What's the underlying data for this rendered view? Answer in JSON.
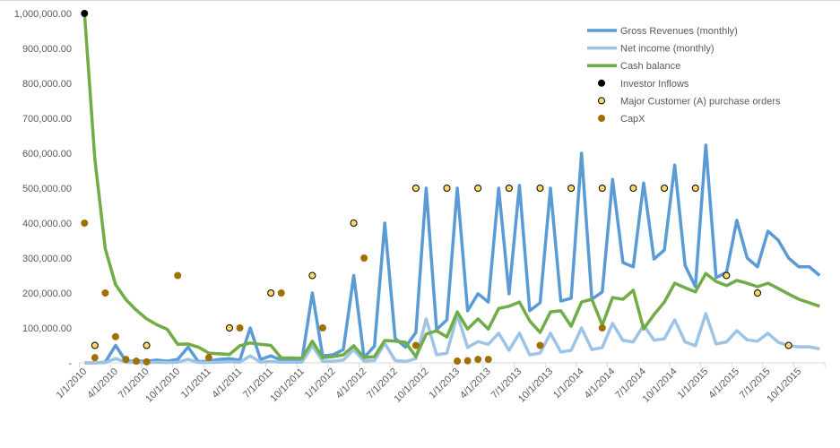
{
  "chart_data": {
    "type": "line",
    "title": "",
    "xlabel": "",
    "ylabel": "",
    "ylim": [
      0,
      1000000
    ],
    "grid": false,
    "legend_placement": "top-right",
    "y_tick_labels": [
      "-",
      "100,000.00",
      "200,000.00",
      "300,000.00",
      "400,000.00",
      "500,000.00",
      "600,000.00",
      "700,000.00",
      "800,000.00",
      "900,000.00",
      "1,000,000.00"
    ],
    "y_ticks": [
      0,
      100000,
      200000,
      300000,
      400000,
      500000,
      600000,
      700000,
      800000,
      900000,
      1000000
    ],
    "x": [
      "1/1/2010",
      "2/1/2010",
      "3/1/2010",
      "4/1/2010",
      "5/1/2010",
      "6/1/2010",
      "7/1/2010",
      "8/1/2010",
      "9/1/2010",
      "10/1/2010",
      "11/1/2010",
      "12/1/2010",
      "1/1/2011",
      "2/1/2011",
      "3/1/2011",
      "4/1/2011",
      "5/1/2011",
      "6/1/2011",
      "7/1/2011",
      "8/1/2011",
      "9/1/2011",
      "10/1/2011",
      "11/1/2011",
      "12/1/2011",
      "1/1/2012",
      "2/1/2012",
      "3/1/2012",
      "4/1/2012",
      "5/1/2012",
      "6/1/2012",
      "7/1/2012",
      "8/1/2012",
      "9/1/2012",
      "10/1/2012",
      "11/1/2012",
      "12/1/2012",
      "1/1/2013",
      "2/1/2013",
      "3/1/2013",
      "4/1/2013",
      "5/1/2013",
      "6/1/2013",
      "7/1/2013",
      "8/1/2013",
      "9/1/2013",
      "10/1/2013",
      "11/1/2013",
      "12/1/2013",
      "1/1/2014",
      "2/1/2014",
      "3/1/2014",
      "4/1/2014",
      "5/1/2014",
      "6/1/2014",
      "7/1/2014",
      "8/1/2014",
      "9/1/2014",
      "10/1/2014",
      "11/1/2014",
      "12/1/2014",
      "1/1/2015",
      "2/1/2015",
      "3/1/2015",
      "4/1/2015",
      "5/1/2015",
      "6/1/2015",
      "7/1/2015",
      "8/1/2015",
      "9/1/2015",
      "10/1/2015",
      "11/1/2015",
      "12/1/2015"
    ],
    "x_tick_labels": [
      "1/1/2010",
      "4/1/2010",
      "7/1/2010",
      "10/1/2010",
      "1/1/2011",
      "4/1/2011",
      "7/1/2011",
      "10/1/2011",
      "1/1/2012",
      "4/1/2012",
      "7/1/2012",
      "10/1/2012",
      "1/1/2013",
      "4/1/2013",
      "7/1/2013",
      "10/1/2013",
      "1/1/2014",
      "4/1/2014",
      "7/1/2014",
      "10/1/2014",
      "1/1/2015",
      "4/1/2015",
      "7/1/2015",
      "10/1/2015"
    ],
    "series": [
      {
        "name": "Gross Revenues (monthly)",
        "kind": "line",
        "color": "#5B9BD5",
        "values": [
          0,
          0,
          2000,
          50000,
          5000,
          5000,
          5000,
          8000,
          5000,
          10000,
          45000,
          3000,
          5000,
          10000,
          12000,
          8000,
          100000,
          10000,
          20000,
          8000,
          10000,
          8000,
          200000,
          20000,
          23000,
          38000,
          250000,
          15000,
          48000,
          400000,
          70000,
          45000,
          87000,
          500000,
          95000,
          123000,
          500000,
          149000,
          198000,
          174000,
          500000,
          198000,
          508000,
          149000,
          172000,
          500000,
          177000,
          185000,
          600000,
          182000,
          203000,
          525000,
          287000,
          275000,
          515000,
          297000,
          323000,
          566000,
          279000,
          218000,
          623000,
          244000,
          259000,
          408000,
          300000,
          275000,
          377000,
          351000,
          300000,
          275000,
          275000,
          250000
        ]
      },
      {
        "name": "Net income (monthly)",
        "kind": "line",
        "color": "#9DC3E6",
        "values": [
          0,
          0,
          1000,
          12000,
          2000,
          1000,
          1000,
          2000,
          1000,
          2000,
          10000,
          1000,
          1000,
          2000,
          3000,
          2000,
          20000,
          2000,
          4000,
          2000,
          2000,
          2000,
          49000,
          5000,
          5000,
          8000,
          38000,
          5000,
          7000,
          56000,
          7000,
          4000,
          12000,
          126000,
          23000,
          28000,
          138000,
          44000,
          61000,
          53000,
          85000,
          36000,
          85000,
          23000,
          28000,
          85000,
          31000,
          36000,
          100000,
          38000,
          44000,
          113000,
          64000,
          60000,
          108000,
          65000,
          69000,
          123000,
          60000,
          49000,
          141000,
          54000,
          60000,
          92000,
          66000,
          62000,
          85000,
          59000,
          49000,
          46000,
          46000,
          40000
        ]
      },
      {
        "name": "Cash balance",
        "kind": "line",
        "color": "#70AD47",
        "values": [
          1000000,
          583000,
          327000,
          224000,
          181000,
          151000,
          126000,
          109000,
          96000,
          53000,
          54000,
          45000,
          28000,
          26000,
          24000,
          49000,
          57000,
          53000,
          50000,
          14000,
          14000,
          13000,
          62000,
          15000,
          18000,
          23000,
          49000,
          15000,
          18000,
          64000,
          62000,
          59000,
          18000,
          82000,
          92000,
          74000,
          146000,
          97000,
          126000,
          97000,
          156000,
          162000,
          174000,
          120000,
          87000,
          146000,
          149000,
          105000,
          174000,
          182000,
          108000,
          187000,
          182000,
          208000,
          97000,
          138000,
          174000,
          228000,
          215000,
          203000,
          256000,
          233000,
          221000,
          236000,
          228000,
          218000,
          228000,
          213000,
          197000,
          182000,
          172000,
          162000
        ]
      },
      {
        "name": "Investor Inflows",
        "kind": "scatter",
        "color": "#000000",
        "stroke": "#000000",
        "points": [
          {
            "x": "1/1/2010",
            "y": 1000000
          }
        ]
      },
      {
        "name": "Major Customer (A) purchase orders",
        "kind": "scatter",
        "color": "#FFD966",
        "stroke": "#000000",
        "points": [
          {
            "x": "2/1/2010",
            "y": 50000
          },
          {
            "x": "7/1/2010",
            "y": 50000
          },
          {
            "x": "3/1/2011",
            "y": 100000
          },
          {
            "x": "7/1/2011",
            "y": 200000
          },
          {
            "x": "11/1/2011",
            "y": 250000
          },
          {
            "x": "3/1/2012",
            "y": 400000
          },
          {
            "x": "9/1/2012",
            "y": 500000
          },
          {
            "x": "12/1/2012",
            "y": 500000
          },
          {
            "x": "3/1/2013",
            "y": 500000
          },
          {
            "x": "6/1/2013",
            "y": 500000
          },
          {
            "x": "9/1/2013",
            "y": 500000
          },
          {
            "x": "12/1/2013",
            "y": 500000
          },
          {
            "x": "3/1/2014",
            "y": 500000
          },
          {
            "x": "6/1/2014",
            "y": 500000
          },
          {
            "x": "9/1/2014",
            "y": 500000
          },
          {
            "x": "12/1/2014",
            "y": 500000
          },
          {
            "x": "3/1/2015",
            "y": 250000
          },
          {
            "x": "6/1/2015",
            "y": 200000
          },
          {
            "x": "9/1/2015",
            "y": 50000
          }
        ]
      },
      {
        "name": "CapX",
        "kind": "scatter",
        "color": "#A07000",
        "stroke": "#A07000",
        "points": [
          {
            "x": "1/1/2010",
            "y": 400000
          },
          {
            "x": "2/1/2010",
            "y": 15000
          },
          {
            "x": "3/1/2010",
            "y": 200000
          },
          {
            "x": "4/1/2010",
            "y": 75000
          },
          {
            "x": "5/1/2010",
            "y": 10000
          },
          {
            "x": "6/1/2010",
            "y": 5000
          },
          {
            "x": "7/1/2010",
            "y": 3000
          },
          {
            "x": "10/1/2010",
            "y": 250000
          },
          {
            "x": "1/1/2011",
            "y": 15000
          },
          {
            "x": "4/1/2011",
            "y": 100000
          },
          {
            "x": "8/1/2011",
            "y": 200000
          },
          {
            "x": "12/1/2011",
            "y": 100000
          },
          {
            "x": "4/1/2012",
            "y": 300000
          },
          {
            "x": "9/1/2012",
            "y": 50000
          },
          {
            "x": "1/1/2013",
            "y": 5000
          },
          {
            "x": "2/1/2013",
            "y": 6000
          },
          {
            "x": "3/1/2013",
            "y": 10000
          },
          {
            "x": "4/1/2013",
            "y": 10000
          },
          {
            "x": "9/1/2013",
            "y": 50000
          },
          {
            "x": "3/1/2014",
            "y": 100000
          }
        ]
      }
    ]
  }
}
